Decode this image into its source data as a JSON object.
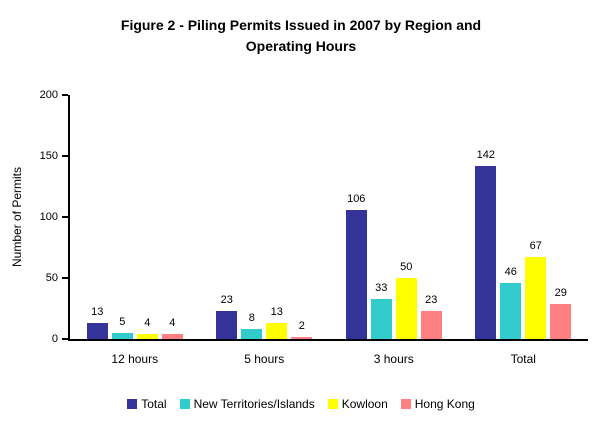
{
  "chart_data": {
    "type": "bar",
    "title_lines": [
      "Figure 2 - Piling Permits Issued in 2007 by Region and",
      "Operating Hours"
    ],
    "title": "Figure 2 - Piling Permits Issued in 2007 by Region and Operating Hours",
    "xlabel": "",
    "ylabel": "Number of Permits",
    "categories": [
      "12 hours",
      "5 hours",
      "3 hours",
      "Total"
    ],
    "series": [
      {
        "name": "Total",
        "color": "#333399",
        "values": [
          13,
          23,
          106,
          142
        ]
      },
      {
        "name": "New Territories/Islands",
        "color": "#33CCCC",
        "values": [
          5,
          8,
          33,
          46
        ]
      },
      {
        "name": "Kowloon",
        "color": "#FFFF00",
        "values": [
          4,
          13,
          50,
          67
        ]
      },
      {
        "name": "Hong Kong",
        "color": "#FF8080",
        "values": [
          4,
          2,
          23,
          29
        ]
      }
    ],
    "ylim": [
      0,
      200
    ],
    "yticks": [
      0,
      50,
      100,
      150,
      200
    ],
    "grid": false,
    "data_labels": true,
    "legend_position": "bottom",
    "background_color": "#FFFFFF",
    "axis_color": "#000000",
    "text_color": "#000000"
  }
}
